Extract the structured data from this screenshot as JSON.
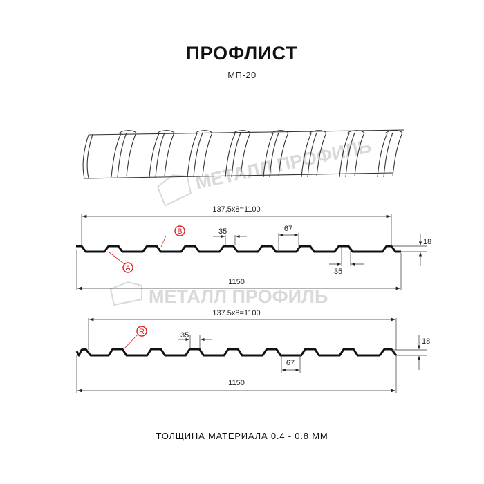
{
  "header": {
    "title": "ПРОФЛИСТ",
    "subtitle": "МП-20"
  },
  "watermark": "МЕТАЛЛ ПРОФИЛЬ",
  "profile_top": {
    "pitch_label": "137,5x8=1100",
    "total_label": "1150",
    "top_width_label": "35",
    "bottom_width_label": "35",
    "valley_label": "67",
    "height_label": "18",
    "marker_a": "A",
    "marker_b": "B"
  },
  "profile_bottom": {
    "pitch_label": "137.5x8=1100",
    "total_label": "1150",
    "top_width_label": "35",
    "valley_label": "67",
    "height_label": "18",
    "marker_r": "R"
  },
  "footer": {
    "thickness": "ТОЛЩИНА МАТЕРИАЛА 0.4 - 0.8 ММ"
  },
  "colors": {
    "line": "#111111",
    "marker": "#e02020",
    "watermark": "#d9d9d9"
  }
}
